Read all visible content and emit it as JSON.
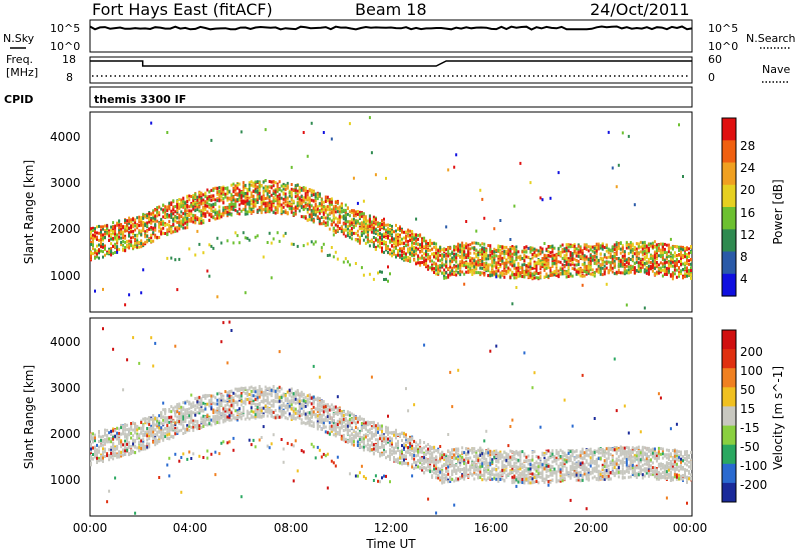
{
  "header": {
    "station": "Fort Hays East (fitACF)",
    "beam": "Beam 18",
    "date": "24/Oct/2011"
  },
  "noise_panel": {
    "left_label": "N.Sky",
    "right_label": "N.Search",
    "left_ticks": [
      "10^5",
      "10^0"
    ],
    "right_ticks": [
      "10^5",
      "10^0"
    ]
  },
  "freq_panel": {
    "left_label_line1": "Freq.",
    "left_label_line2": "[MHz]",
    "right_label": "Nave",
    "left_ticks": [
      "18",
      "8"
    ],
    "right_ticks": [
      "60",
      "0"
    ]
  },
  "cpid": {
    "label": "CPID",
    "mode": "themis 3300 IF"
  },
  "power_panel": {
    "ylabel": "Slant Range [km]",
    "yticks": [
      "4000",
      "3000",
      "2000",
      "1000"
    ],
    "colorbar_label": "Power [dB]",
    "colorbar_ticks": [
      "28",
      "24",
      "20",
      "16",
      "12",
      "8",
      "4"
    ],
    "colors": [
      "#1010e0",
      "#2a5aa8",
      "#2f8a50",
      "#6cc030",
      "#e6d020",
      "#f0a020",
      "#f06010",
      "#e01010"
    ]
  },
  "velocity_panel": {
    "ylabel": "Slant Range [km]",
    "yticks": [
      "4000",
      "3000",
      "2000",
      "1000"
    ],
    "colorbar_label": "Velocity [m s^-1]",
    "colorbar_ticks": [
      "200",
      "100",
      "50",
      "15",
      "-15",
      "-50",
      "-100",
      "-200"
    ],
    "colors": [
      "#1a2a9a",
      "#2a6ad0",
      "#2aa860",
      "#8ad040",
      "#c8c8c0",
      "#f0c020",
      "#f08020",
      "#e03010",
      "#d01010"
    ]
  },
  "x_axis": {
    "ticks": [
      "00:00",
      "04:00",
      "08:00",
      "12:00",
      "16:00",
      "20:00",
      "00:00"
    ],
    "label": "Time UT"
  },
  "chart_data": {
    "type": "heatmap",
    "x_range_hours": [
      0,
      24
    ],
    "y_range_km": [
      180,
      4500
    ],
    "power_range_db": [
      0,
      32
    ],
    "velocity_range": [
      -250,
      250
    ],
    "scatter_band_center_km": [
      [
        0,
        1700
      ],
      [
        1,
        1850
      ],
      [
        2,
        2000
      ],
      [
        3,
        2250
      ],
      [
        4,
        2450
      ],
      [
        5,
        2600
      ],
      [
        6,
        2700
      ],
      [
        7,
        2750
      ],
      [
        8,
        2700
      ],
      [
        9,
        2500
      ],
      [
        10,
        2250
      ],
      [
        11,
        2000
      ],
      [
        12,
        1800
      ],
      [
        13,
        1600
      ],
      [
        14,
        1300
      ],
      [
        15,
        1400
      ],
      [
        16,
        1350
      ],
      [
        17,
        1300
      ],
      [
        18,
        1300
      ],
      [
        19,
        1350
      ],
      [
        20,
        1350
      ],
      [
        21,
        1400
      ],
      [
        22,
        1400
      ],
      [
        23,
        1350
      ],
      [
        24,
        1300
      ]
    ],
    "frequency_mhz": [
      [
        0,
        17
      ],
      [
        2.1,
        17
      ],
      [
        2.1,
        14.5
      ],
      [
        13.8,
        14.5
      ],
      [
        14.2,
        17
      ],
      [
        24,
        17
      ]
    ],
    "nave": [
      [
        0,
        9
      ],
      [
        24,
        9
      ]
    ]
  }
}
